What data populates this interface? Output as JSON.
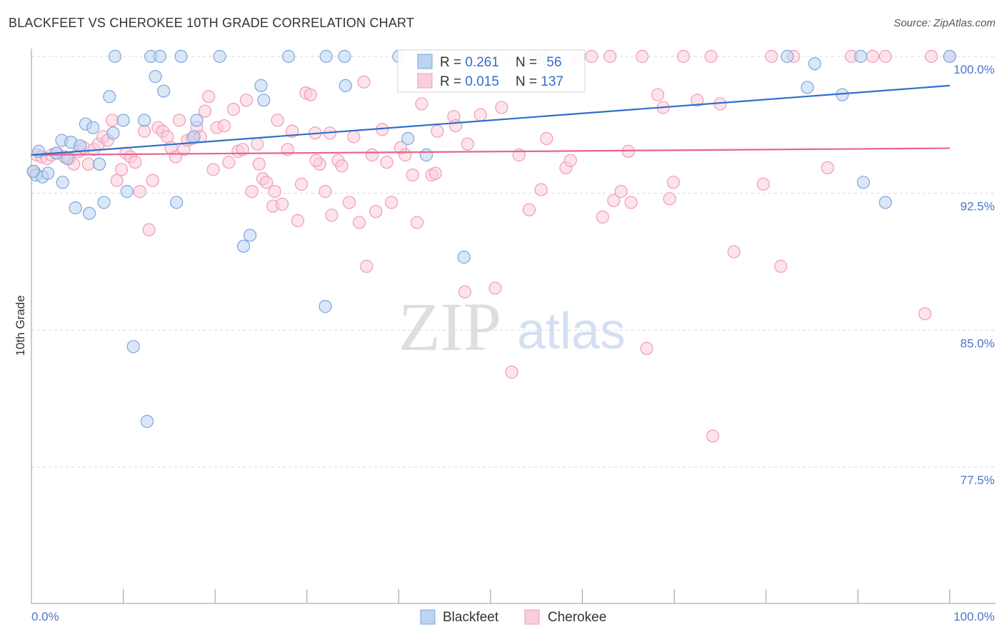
{
  "header": {
    "title": "BLACKFEET VS CHEROKEE 10TH GRADE CORRELATION CHART",
    "source": "Source: ZipAtlas.com"
  },
  "watermark": {
    "zip": "ZIP",
    "atlas": "atlas"
  },
  "legend": {
    "blackfeet": {
      "r_label": "R = ",
      "r_value": "0.261",
      "n_label": "N = ",
      "n_value": "56"
    },
    "cherokee": {
      "r_label": "R = ",
      "r_value": "0.015",
      "n_label": "N = ",
      "n_value": "137"
    }
  },
  "bottom_legend": {
    "blackfeet": "Blackfeet",
    "cherokee": "Cherokee"
  },
  "chart_data": {
    "type": "scatter",
    "title": "BLACKFEET VS CHEROKEE 10TH GRADE CORRELATION CHART",
    "xlabel": "",
    "ylabel": "10th Grade",
    "xlim": [
      0,
      100
    ],
    "ylim": [
      70.0,
      100.5
    ],
    "x_tick_labels": [
      "0.0%",
      "100.0%"
    ],
    "y_ticks": [
      {
        "value": 100.0,
        "label": "100.0%"
      },
      {
        "value": 92.5,
        "label": "92.5%"
      },
      {
        "value": 85.0,
        "label": "85.0%"
      },
      {
        "value": 77.5,
        "label": "77.5%"
      }
    ],
    "grid": "horizontal dashed",
    "colors": {
      "blackfeet": "#7aa7e0",
      "cherokee": "#f19bb6",
      "blackfeet_line": "#2f6fcc",
      "cherokee_line": "#e8658f"
    },
    "series": [
      {
        "name": "Blackfeet",
        "R": 0.261,
        "N": 56,
        "trend": {
          "x": [
            0,
            100
          ],
          "y": [
            94.6,
            98.4
          ]
        },
        "points": [
          [
            0.5,
            93.5
          ],
          [
            0.8,
            94.8
          ],
          [
            1.2,
            93.4
          ],
          [
            1.8,
            93.6
          ],
          [
            2.7,
            94.7
          ],
          [
            3.3,
            95.4
          ],
          [
            3.4,
            93.1
          ],
          [
            3.9,
            94.4
          ],
          [
            4.3,
            95.3
          ],
          [
            4.8,
            91.7
          ],
          [
            5.3,
            95.1
          ],
          [
            5.9,
            96.3
          ],
          [
            6.3,
            91.4
          ],
          [
            6.7,
            96.1
          ],
          [
            7.4,
            94.1
          ],
          [
            7.9,
            92.0
          ],
          [
            8.5,
            97.8
          ],
          [
            8.9,
            95.8
          ],
          [
            9.1,
            100.0
          ],
          [
            10.0,
            96.5
          ],
          [
            10.4,
            92.6
          ],
          [
            11.1,
            84.1
          ],
          [
            12.3,
            96.5
          ],
          [
            12.6,
            80.0
          ],
          [
            13.0,
            100.0
          ],
          [
            13.5,
            98.9
          ],
          [
            14.0,
            100.0
          ],
          [
            14.4,
            98.1
          ],
          [
            15.8,
            92.0
          ],
          [
            16.3,
            100.0
          ],
          [
            17.7,
            95.6
          ],
          [
            18.0,
            96.5
          ],
          [
            20.5,
            100.0
          ],
          [
            23.1,
            89.6
          ],
          [
            23.8,
            90.2
          ],
          [
            25.0,
            98.4
          ],
          [
            25.3,
            97.6
          ],
          [
            28.0,
            100.0
          ],
          [
            32.0,
            86.3
          ],
          [
            32.1,
            100.0
          ],
          [
            34.1,
            100.0
          ],
          [
            34.2,
            98.4
          ],
          [
            40.0,
            100.0
          ],
          [
            41.0,
            95.5
          ],
          [
            43.0,
            94.6
          ],
          [
            47.1,
            89.0
          ],
          [
            55.6,
            99.9
          ],
          [
            82.3,
            100.0
          ],
          [
            84.5,
            98.3
          ],
          [
            85.3,
            99.6
          ],
          [
            88.3,
            97.9
          ],
          [
            90.3,
            100.0
          ],
          [
            90.6,
            93.1
          ],
          [
            93.0,
            92.0
          ],
          [
            100.0,
            100.0
          ],
          [
            0.2,
            93.7
          ]
        ]
      },
      {
        "name": "Cherokee",
        "R": 0.015,
        "N": 137,
        "trend": {
          "x": [
            0,
            100
          ],
          "y": [
            94.6,
            94.97
          ]
        },
        "points": [
          [
            0.3,
            93.7
          ],
          [
            0.6,
            94.6
          ],
          [
            1.1,
            94.5
          ],
          [
            1.7,
            94.4
          ],
          [
            2.2,
            94.6
          ],
          [
            2.8,
            94.7
          ],
          [
            3.6,
            94.5
          ],
          [
            4.1,
            94.4
          ],
          [
            4.6,
            94.1
          ],
          [
            5.2,
            94.8
          ],
          [
            5.7,
            95.0
          ],
          [
            6.2,
            94.1
          ],
          [
            6.8,
            94.9
          ],
          [
            7.3,
            95.2
          ],
          [
            7.8,
            95.6
          ],
          [
            8.3,
            95.4
          ],
          [
            8.8,
            96.5
          ],
          [
            9.3,
            93.2
          ],
          [
            9.8,
            93.8
          ],
          [
            10.3,
            94.7
          ],
          [
            10.8,
            94.5
          ],
          [
            11.3,
            94.2
          ],
          [
            11.8,
            92.6
          ],
          [
            12.3,
            95.9
          ],
          [
            12.8,
            90.5
          ],
          [
            13.2,
            93.2
          ],
          [
            13.8,
            96.1
          ],
          [
            14.3,
            95.9
          ],
          [
            14.8,
            95.6
          ],
          [
            15.2,
            95.0
          ],
          [
            15.7,
            94.5
          ],
          [
            16.1,
            96.5
          ],
          [
            16.6,
            94.9
          ],
          [
            17.0,
            95.4
          ],
          [
            17.5,
            95.5
          ],
          [
            18.0,
            96.1
          ],
          [
            18.4,
            95.6
          ],
          [
            18.9,
            97.0
          ],
          [
            19.3,
            97.8
          ],
          [
            19.8,
            93.8
          ],
          [
            20.2,
            96.1
          ],
          [
            21.0,
            96.2
          ],
          [
            21.5,
            94.2
          ],
          [
            22.0,
            97.1
          ],
          [
            22.5,
            94.8
          ],
          [
            23.0,
            94.9
          ],
          [
            23.4,
            97.6
          ],
          [
            24.0,
            92.6
          ],
          [
            24.6,
            95.2
          ],
          [
            25.2,
            93.3
          ],
          [
            25.6,
            93.1
          ],
          [
            26.3,
            91.8
          ],
          [
            26.8,
            96.5
          ],
          [
            27.3,
            91.9
          ],
          [
            27.9,
            94.9
          ],
          [
            28.4,
            95.9
          ],
          [
            29.0,
            91.0
          ],
          [
            29.4,
            93.0
          ],
          [
            29.9,
            98.0
          ],
          [
            30.4,
            97.9
          ],
          [
            30.9,
            95.8
          ],
          [
            31.4,
            94.1
          ],
          [
            32.0,
            92.6
          ],
          [
            32.5,
            95.8
          ],
          [
            32.7,
            91.3
          ],
          [
            33.4,
            94.3
          ],
          [
            33.8,
            94.0
          ],
          [
            34.6,
            92.0
          ],
          [
            35.1,
            95.6
          ],
          [
            35.7,
            90.9
          ],
          [
            36.2,
            98.6
          ],
          [
            36.5,
            88.5
          ],
          [
            37.1,
            94.6
          ],
          [
            38.2,
            96.0
          ],
          [
            38.7,
            94.2
          ],
          [
            39.2,
            92.0
          ],
          [
            40.2,
            95.0
          ],
          [
            40.7,
            94.6
          ],
          [
            41.5,
            93.5
          ],
          [
            42.0,
            90.9
          ],
          [
            42.5,
            97.4
          ],
          [
            43.2,
            100.0
          ],
          [
            43.6,
            93.5
          ],
          [
            44.2,
            95.9
          ],
          [
            46.0,
            96.7
          ],
          [
            46.2,
            96.2
          ],
          [
            47.2,
            87.1
          ],
          [
            48.9,
            96.8
          ],
          [
            49.2,
            99.9
          ],
          [
            50.5,
            87.3
          ],
          [
            51.0,
            100.0
          ],
          [
            51.2,
            97.2
          ],
          [
            52.3,
            82.7
          ],
          [
            53.1,
            94.6
          ],
          [
            54.2,
            91.6
          ],
          [
            55.5,
            92.7
          ],
          [
            56.1,
            95.5
          ],
          [
            58.2,
            93.9
          ],
          [
            58.7,
            94.3
          ],
          [
            59.7,
            100.0
          ],
          [
            61.0,
            100.0
          ],
          [
            62.2,
            91.2
          ],
          [
            63.4,
            92.1
          ],
          [
            64.2,
            92.6
          ],
          [
            65.0,
            94.8
          ],
          [
            65.3,
            92.0
          ],
          [
            67.0,
            84.0
          ],
          [
            68.2,
            97.9
          ],
          [
            68.8,
            97.2
          ],
          [
            69.5,
            92.2
          ],
          [
            69.9,
            93.1
          ],
          [
            71.0,
            100.0
          ],
          [
            72.5,
            97.6
          ],
          [
            74.2,
            79.2
          ],
          [
            75.0,
            97.4
          ],
          [
            76.5,
            89.3
          ],
          [
            79.7,
            93.0
          ],
          [
            80.6,
            100.0
          ],
          [
            81.6,
            88.5
          ],
          [
            86.7,
            93.9
          ],
          [
            89.3,
            100.0
          ],
          [
            91.6,
            100.0
          ],
          [
            93.0,
            100.0
          ],
          [
            97.3,
            85.9
          ],
          [
            98.0,
            100.0
          ],
          [
            100.0,
            100.0
          ],
          [
            44.0,
            93.6
          ],
          [
            74.0,
            100.0
          ],
          [
            55.0,
            100.0
          ],
          [
            63.0,
            100.0
          ],
          [
            66.5,
            100.0
          ],
          [
            83.0,
            100.0
          ],
          [
            26.5,
            92.6
          ],
          [
            37.5,
            91.5
          ],
          [
            47.5,
            95.2
          ],
          [
            31.0,
            94.3
          ],
          [
            24.8,
            94.1
          ]
        ]
      }
    ]
  }
}
